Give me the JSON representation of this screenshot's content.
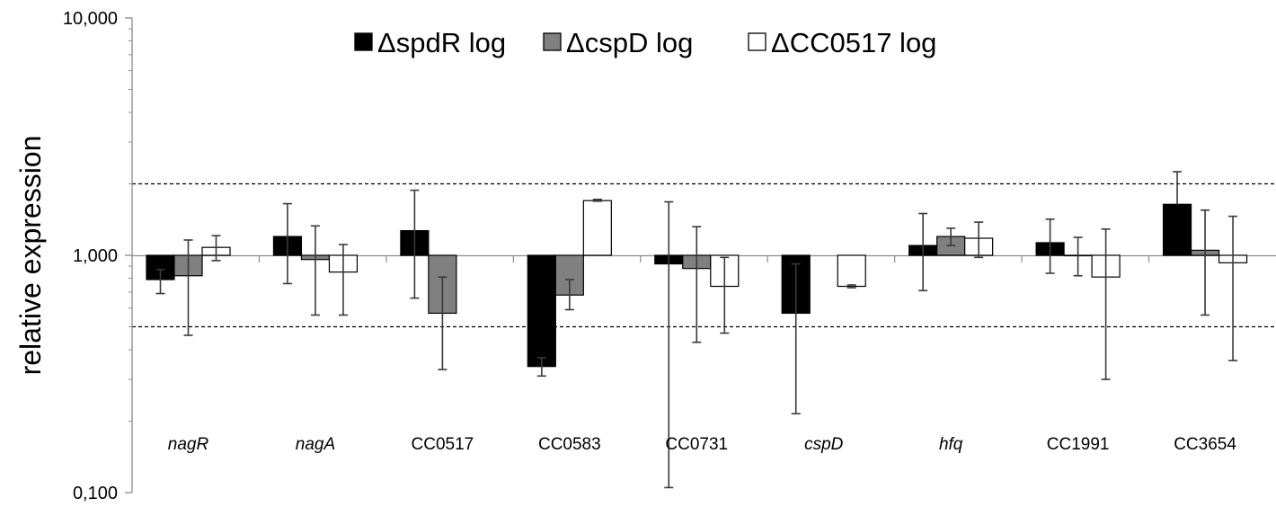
{
  "chart_data": {
    "type": "bar",
    "yscale": "log",
    "ylim": [
      0.1,
      10
    ],
    "ylabel": "relative expression",
    "yticks": [
      {
        "value": 0.1,
        "label": "0,100"
      },
      {
        "value": 1,
        "label": "1,000"
      },
      {
        "value": 10,
        "label": "10,000"
      }
    ],
    "reference_lines": [
      2,
      0.5
    ],
    "legend_position": "top",
    "categories": [
      {
        "label": "nagR",
        "italic": true
      },
      {
        "label": "nagA",
        "italic": true
      },
      {
        "label": "CC0517",
        "italic": false
      },
      {
        "label": "CC0583",
        "italic": false
      },
      {
        "label": "CC0731",
        "italic": false
      },
      {
        "label": "cspD",
        "italic": true
      },
      {
        "label": "hfq",
        "italic": true
      },
      {
        "label": "CC1991",
        "italic": false
      },
      {
        "label": "CC3654",
        "italic": false
      }
    ],
    "series": [
      {
        "name": "ΔspdR log",
        "color": "#000000",
        "values": [
          0.79,
          1.2,
          1.27,
          0.34,
          0.92,
          0.57,
          1.1,
          1.13,
          1.64
        ],
        "err_low": [
          0.69,
          0.76,
          0.66,
          0.31,
          0.105,
          0.215,
          0.71,
          0.84,
          null
        ],
        "err_high": [
          0.87,
          1.65,
          1.88,
          0.37,
          1.68,
          0.92,
          1.5,
          1.42,
          2.25
        ]
      },
      {
        "name": "ΔcspD log",
        "color": "#808080",
        "values": [
          0.82,
          0.96,
          0.57,
          0.68,
          0.88,
          null,
          1.2,
          1.0,
          1.05
        ],
        "err_low": [
          0.46,
          0.56,
          0.33,
          0.59,
          0.43,
          null,
          1.1,
          0.82,
          0.56
        ],
        "err_high": [
          1.16,
          1.33,
          0.81,
          0.79,
          1.32,
          null,
          1.3,
          1.19,
          1.55
        ]
      },
      {
        "name": "ΔCC0517 log",
        "color": "#ffffff",
        "values": [
          1.08,
          0.85,
          null,
          1.7,
          0.74,
          0.74,
          1.18,
          0.81,
          0.93
        ],
        "err_low": [
          0.95,
          0.56,
          null,
          1.69,
          0.47,
          0.73,
          0.98,
          0.3,
          0.36
        ],
        "err_high": [
          1.21,
          1.11,
          null,
          1.72,
          0.98,
          0.75,
          1.38,
          1.29,
          1.46
        ]
      }
    ]
  }
}
